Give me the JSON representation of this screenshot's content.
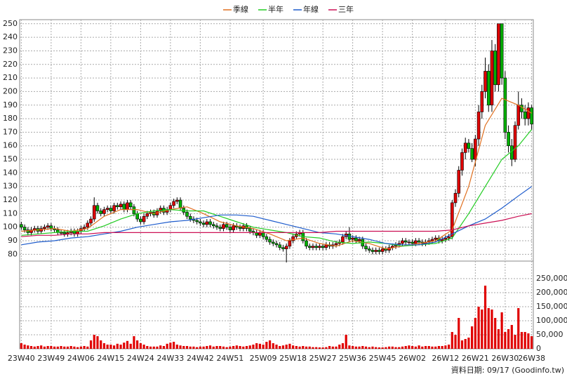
{
  "chart_data": [
    {
      "type": "candlestick",
      "up_color": "#e00000",
      "down_color": "#00b000",
      "grid": true,
      "categories": [
        "23W40",
        null,
        null,
        null,
        null,
        null,
        null,
        null,
        null,
        "23W49",
        null,
        null,
        null,
        null,
        null,
        null,
        null,
        null,
        "24W06",
        null,
        null,
        null,
        null,
        null,
        null,
        null,
        null,
        "24W15",
        null,
        null,
        null,
        null,
        null,
        null,
        null,
        null,
        "24W24",
        null,
        null,
        null,
        null,
        null,
        null,
        null,
        null,
        "24W33",
        null,
        null,
        null,
        null,
        null,
        null,
        null,
        null,
        "24W42",
        null,
        null,
        null,
        null,
        null,
        null,
        null,
        null,
        "24W51",
        null,
        null,
        null,
        null,
        null,
        null,
        null,
        null,
        null,
        "25W09",
        null,
        null,
        null,
        null,
        null,
        null,
        null,
        null,
        "25W18",
        null,
        null,
        null,
        null,
        null,
        null,
        null,
        null,
        "25W27",
        null,
        null,
        null,
        null,
        null,
        null,
        null,
        null,
        "25W36",
        null,
        null,
        null,
        null,
        null,
        null,
        null,
        null,
        "25W45",
        null,
        null,
        null,
        null,
        null,
        null,
        null,
        null,
        "26W02",
        null,
        null,
        null,
        null,
        null,
        null,
        null,
        null,
        null,
        "26W12",
        null,
        null,
        null,
        null,
        null,
        null,
        null,
        null,
        "26W21",
        null,
        null,
        null,
        null,
        null,
        null,
        null,
        null,
        "26W30",
        null,
        null,
        null,
        null,
        null,
        null,
        null,
        "26W38"
      ],
      "open": [
        102,
        100,
        98,
        96,
        98,
        99,
        97,
        99,
        100,
        101,
        99,
        98,
        96,
        96,
        95,
        96,
        97,
        95,
        97,
        99,
        100,
        103,
        106,
        116,
        112,
        110,
        113,
        114,
        112,
        116,
        115,
        117,
        113,
        118,
        115,
        110,
        106,
        104,
        108,
        110,
        111,
        109,
        112,
        114,
        111,
        113,
        116,
        119,
        120,
        114,
        111,
        108,
        106,
        105,
        104,
        103,
        102,
        104,
        102,
        101,
        100,
        99,
        102,
        100,
        98,
        101,
        100,
        99,
        101,
        99,
        97,
        96,
        94,
        96,
        93,
        91,
        89,
        88,
        87,
        85,
        84,
        86,
        90,
        93,
        95,
        96,
        90,
        86,
        85,
        86,
        85,
        86,
        85,
        87,
        86,
        87,
        88,
        89,
        93,
        95,
        91,
        92,
        90,
        91,
        86,
        84,
        83,
        82,
        83,
        82,
        84,
        83,
        85,
        86,
        87,
        88,
        90,
        89,
        89,
        88,
        90,
        89,
        88,
        89,
        90,
        91,
        92,
        90,
        91,
        92,
        93,
        118,
        125,
        142,
        155,
        162,
        158,
        150,
        165,
        185,
        200,
        215,
        190,
        230,
        205,
        250,
        210,
        170,
        160,
        150,
        175,
        190,
        185,
        180,
        188
      ],
      "high": [
        104,
        102,
        100,
        100,
        101,
        101,
        101,
        102,
        103,
        103,
        101,
        100,
        98,
        98,
        98,
        99,
        99,
        99,
        101,
        102,
        105,
        108,
        122,
        118,
        114,
        115,
        116,
        116,
        118,
        118,
        119,
        119,
        120,
        120,
        117,
        112,
        108,
        110,
        112,
        113,
        113,
        114,
        116,
        116,
        115,
        118,
        121,
        122,
        122,
        116,
        113,
        110,
        108,
        107,
        106,
        105,
        106,
        106,
        104,
        103,
        102,
        104,
        104,
        102,
        103,
        103,
        102,
        103,
        103,
        101,
        99,
        98,
        98,
        98,
        95,
        93,
        91,
        90,
        89,
        87,
        88,
        92,
        95,
        97,
        98,
        98,
        92,
        88,
        88,
        88,
        88,
        88,
        89,
        89,
        89,
        90,
        91,
        95,
        97,
        100,
        94,
        94,
        93,
        93,
        88,
        86,
        85,
        85,
        85,
        86,
        86,
        87,
        88,
        89,
        90,
        92,
        92,
        91,
        91,
        92,
        92,
        91,
        91,
        92,
        93,
        94,
        94,
        93,
        94,
        95,
        120,
        128,
        145,
        158,
        166,
        165,
        162,
        168,
        190,
        205,
        225,
        220,
        238,
        235,
        250,
        250,
        215,
        175,
        165,
        178,
        200,
        195,
        190,
        192,
        190
      ],
      "low": [
        98,
        96,
        94,
        94,
        96,
        95,
        95,
        97,
        98,
        97,
        96,
        94,
        94,
        93,
        93,
        94,
        93,
        93,
        95,
        97,
        98,
        101,
        104,
        110,
        108,
        108,
        111,
        110,
        110,
        113,
        113,
        111,
        111,
        113,
        108,
        104,
        102,
        102,
        106,
        108,
        107,
        107,
        110,
        109,
        109,
        111,
        114,
        117,
        112,
        109,
        106,
        104,
        103,
        102,
        101,
        100,
        100,
        100,
        99,
        98,
        97,
        97,
        98,
        96,
        96,
        98,
        97,
        97,
        97,
        95,
        94,
        92,
        92,
        91,
        89,
        87,
        86,
        85,
        83,
        82,
        74,
        84,
        88,
        91,
        93,
        88,
        84,
        83,
        83,
        83,
        83,
        83,
        83,
        84,
        84,
        85,
        86,
        87,
        91,
        89,
        89,
        88,
        88,
        84,
        82,
        81,
        80,
        80,
        80,
        80,
        81,
        81,
        83,
        84,
        85,
        86,
        87,
        87,
        86,
        86,
        87,
        86,
        86,
        87,
        88,
        89,
        88,
        88,
        89,
        90,
        91,
        115,
        122,
        138,
        150,
        155,
        148,
        145,
        160,
        180,
        195,
        185,
        185,
        200,
        200,
        205,
        165,
        155,
        145,
        148,
        172,
        180,
        175,
        175,
        172
      ],
      "close": [
        100,
        98,
        96,
        98,
        99,
        97,
        99,
        100,
        101,
        99,
        98,
        96,
        96,
        95,
        96,
        97,
        95,
        97,
        99,
        100,
        103,
        106,
        116,
        112,
        110,
        113,
        114,
        112,
        116,
        115,
        117,
        113,
        118,
        115,
        110,
        106,
        104,
        108,
        110,
        111,
        109,
        112,
        114,
        111,
        113,
        116,
        119,
        120,
        114,
        111,
        108,
        106,
        105,
        104,
        103,
        102,
        104,
        102,
        101,
        100,
        99,
        102,
        100,
        98,
        101,
        100,
        99,
        101,
        99,
        97,
        96,
        94,
        96,
        93,
        91,
        89,
        88,
        87,
        85,
        84,
        86,
        90,
        93,
        95,
        96,
        90,
        86,
        85,
        86,
        85,
        86,
        85,
        87,
        86,
        87,
        88,
        89,
        93,
        95,
        91,
        92,
        90,
        91,
        86,
        84,
        83,
        82,
        83,
        82,
        84,
        83,
        85,
        86,
        87,
        88,
        90,
        89,
        89,
        88,
        90,
        89,
        88,
        89,
        90,
        91,
        92,
        90,
        91,
        92,
        93,
        118,
        125,
        142,
        155,
        162,
        158,
        150,
        165,
        185,
        200,
        215,
        190,
        230,
        205,
        250,
        210,
        170,
        160,
        150,
        175,
        190,
        185,
        180,
        188,
        176
      ],
      "ylim": [
        75,
        253
      ],
      "yticks": [
        80,
        90,
        100,
        110,
        120,
        130,
        140,
        150,
        160,
        170,
        180,
        190,
        200,
        210,
        220,
        230,
        240,
        250
      ],
      "series": [
        {
          "name": "季線",
          "color": "#e07020",
          "x": [
            0,
            5,
            10,
            15,
            20,
            25,
            30,
            35,
            40,
            45,
            50,
            55,
            60,
            65,
            70,
            75,
            80,
            85,
            90,
            95,
            100,
            105,
            110,
            115,
            120,
            125,
            130,
            135,
            140,
            145,
            150,
            154
          ],
          "values": [
            97,
            98,
            99,
            97,
            99,
            108,
            113,
            113,
            110,
            113,
            115,
            110,
            104,
            101,
            99,
            95,
            90,
            92,
            88,
            86,
            90,
            88,
            84,
            86,
            88,
            90,
            98,
            130,
            175,
            195,
            190,
            184
          ]
        },
        {
          "name": "半年",
          "color": "#22cc22",
          "x": [
            0,
            5,
            10,
            15,
            20,
            25,
            30,
            35,
            40,
            45,
            50,
            55,
            60,
            65,
            70,
            75,
            80,
            85,
            90,
            95,
            100,
            105,
            110,
            115,
            120,
            125,
            130,
            135,
            140,
            145,
            150,
            154
          ],
          "values": [
            94,
            95,
            96,
            97,
            97,
            101,
            106,
            110,
            112,
            113,
            112,
            112,
            108,
            104,
            100,
            98,
            96,
            93,
            92,
            89,
            88,
            89,
            88,
            86,
            87,
            88,
            92,
            110,
            130,
            150,
            160,
            172
          ]
        },
        {
          "name": "年線",
          "color": "#1e5ccc",
          "x": [
            0,
            5,
            10,
            15,
            20,
            25,
            30,
            35,
            40,
            45,
            50,
            55,
            60,
            65,
            70,
            75,
            80,
            85,
            90,
            95,
            100,
            105,
            110,
            115,
            120,
            125,
            130,
            135,
            140,
            145,
            150,
            154
          ],
          "values": [
            87,
            89,
            90,
            92,
            93,
            95,
            97,
            100,
            102,
            104,
            105,
            107,
            109,
            109,
            108,
            105,
            102,
            99,
            96,
            95,
            93,
            91,
            88,
            87,
            87,
            89,
            95,
            101,
            106,
            114,
            123,
            130
          ]
        },
        {
          "name": "三年",
          "color": "#cc1155",
          "x": [
            0,
            5,
            10,
            15,
            20,
            25,
            30,
            35,
            40,
            45,
            50,
            55,
            60,
            65,
            70,
            75,
            80,
            85,
            90,
            95,
            100,
            105,
            110,
            115,
            120,
            125,
            130,
            135,
            140,
            145,
            150,
            154
          ],
          "values": [
            93,
            94,
            94,
            95,
            95,
            96,
            96,
            96,
            96,
            96,
            96,
            96,
            96,
            96,
            96,
            96,
            96,
            96,
            96,
            97,
            97,
            97,
            97,
            97,
            97,
            97,
            98,
            101,
            103,
            105,
            108,
            110
          ]
        }
      ]
    },
    {
      "type": "bar",
      "color": "#e00000",
      "grid": true,
      "source": "資料日期: 09/17  (Goodinfo.tw)",
      "values": [
        20000,
        15000,
        12000,
        10000,
        8000,
        10000,
        12000,
        8000,
        10000,
        10000,
        8000,
        8000,
        10000,
        8000,
        8000,
        10000,
        8000,
        6000,
        8000,
        10000,
        8000,
        30000,
        50000,
        45000,
        30000,
        20000,
        15000,
        15000,
        12000,
        18000,
        15000,
        22000,
        28000,
        18000,
        45000,
        30000,
        20000,
        15000,
        10000,
        8000,
        8000,
        8000,
        12000,
        10000,
        18000,
        22000,
        25000,
        15000,
        12000,
        10000,
        10000,
        8000,
        8000,
        6000,
        8000,
        8000,
        10000,
        12000,
        8000,
        10000,
        10000,
        8000,
        6000,
        8000,
        10000,
        12000,
        10000,
        8000,
        10000,
        12000,
        15000,
        20000,
        18000,
        15000,
        25000,
        30000,
        20000,
        15000,
        10000,
        12000,
        15000,
        18000,
        12000,
        10000,
        8000,
        10000,
        8000,
        8000,
        6000,
        6000,
        5000,
        5000,
        6000,
        10000,
        8000,
        8000,
        15000,
        20000,
        50000,
        12000,
        10000,
        8000,
        8000,
        10000,
        8000,
        6000,
        8000,
        6000,
        5000,
        5000,
        6000,
        8000,
        8000,
        6000,
        6000,
        8000,
        10000,
        12000,
        10000,
        8000,
        12000,
        8000,
        10000,
        10000,
        8000,
        8000,
        10000,
        10000,
        12000,
        15000,
        60000,
        50000,
        110000,
        30000,
        35000,
        40000,
        80000,
        110000,
        150000,
        140000,
        225000,
        145000,
        140000,
        110000,
        70000,
        130000,
        60000,
        70000,
        85000,
        50000,
        145000,
        60000,
        60000,
        55000,
        45000
      ],
      "ylim": [
        0,
        300000
      ],
      "yticks": [
        0,
        {
          "value": 50000,
          "label": "50,000"
        },
        {
          "value": 100000,
          "label": "100,000"
        },
        {
          "value": 150000,
          "label": "150,000"
        },
        {
          "value": 200000,
          "label": "200,000"
        },
        {
          "value": 250000,
          "label": "250,000"
        }
      ]
    }
  ]
}
